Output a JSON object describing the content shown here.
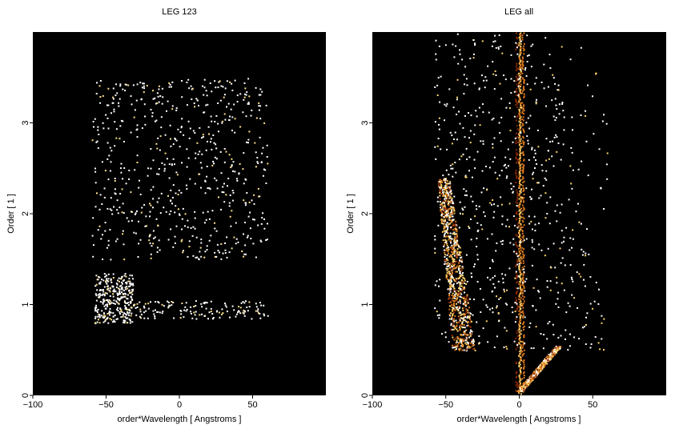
{
  "chart_data": [
    {
      "type": "heatmap",
      "title": "LEG 123",
      "xlabel": "order*Wavelength [ Angstroms ]",
      "ylabel": "Order [ 1 ]",
      "xlim": [
        -100,
        100
      ],
      "ylim": [
        0,
        4
      ],
      "xticks": [
        -100,
        -50,
        0,
        50
      ],
      "yticks": [
        0,
        1,
        2,
        3
      ],
      "background": "#000000",
      "colors": [
        "#ffffff",
        "#ffe28a"
      ],
      "features": [
        {
          "x_range": [
            -58,
            -32
          ],
          "y_range": [
            0.8,
            1.35
          ],
          "density": "high"
        },
        {
          "x_range": [
            -35,
            60
          ],
          "y_range": [
            0.85,
            1.05
          ],
          "density": "low"
        },
        {
          "x_range": [
            -60,
            60
          ],
          "y_range": [
            1.5,
            3.5
          ],
          "density": "sparse"
        }
      ]
    },
    {
      "type": "heatmap",
      "title": "LEG all",
      "xlabel": "order*Wavelength [ Angstroms ]",
      "ylabel": "Order [ 1 ]",
      "xlim": [
        -100,
        100
      ],
      "ylim": [
        0,
        4
      ],
      "xticks": [
        -100,
        -50,
        0,
        50
      ],
      "yticks": [
        0,
        1,
        2,
        3
      ],
      "background": "#000000",
      "colors": [
        "#ffffff",
        "#ffd36a",
        "#d9781c",
        "#8a2a05"
      ],
      "features": [
        {
          "name": "zeroth-order line",
          "x": 0,
          "y_range": [
            0,
            4
          ],
          "density": "high"
        },
        {
          "name": "positive branch",
          "x_range": [
            0,
            28
          ],
          "y_range": [
            0.05,
            0.55
          ],
          "density": "high"
        },
        {
          "name": "negative branch",
          "x_range": [
            -60,
            -32
          ],
          "y_range": [
            0.5,
            2.4
          ],
          "density": "high"
        },
        {
          "name": "upper field",
          "x_range": [
            -58,
            80
          ],
          "y_range": [
            0.5,
            4
          ],
          "density": "sparse"
        }
      ]
    }
  ]
}
